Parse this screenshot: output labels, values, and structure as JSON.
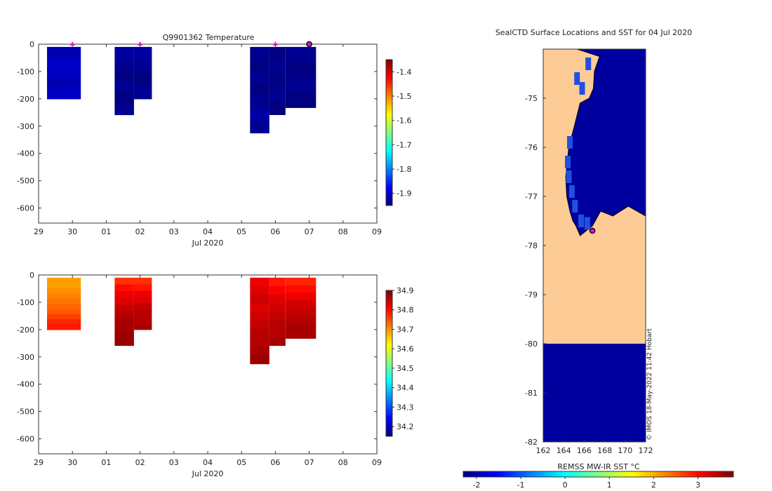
{
  "chart_data": [
    {
      "type": "heatmap",
      "title": "Q9901362  Temperature",
      "xlabel": "Jul 2020",
      "ylabel": "",
      "x_ticks": [
        "29",
        "30",
        "01",
        "02",
        "03",
        "04",
        "05",
        "06",
        "07",
        "08",
        "09"
      ],
      "xlim": [
        0,
        10
      ],
      "y_ticks": [
        0,
        -100,
        -200,
        -300,
        -400,
        -500,
        -600
      ],
      "ylim": [
        -655,
        0
      ],
      "profile_markers_day": [
        1,
        3,
        7,
        8
      ],
      "last_profile_day": 8,
      "colorbar": {
        "min": -1.95,
        "max": -1.35,
        "ticks": [
          -1.4,
          -1.5,
          -1.6,
          -1.7,
          -1.8,
          -1.9
        ]
      },
      "profiles": [
        {
          "start": 0.25,
          "end": 1.25,
          "depth": 200,
          "values": [
            -1.92,
            -1.91,
            -1.91,
            -1.92,
            -1.91
          ]
        },
        {
          "start": 2.25,
          "end": 2.82,
          "depth": 258,
          "values": [
            -1.93,
            -1.94,
            -1.95,
            -1.94,
            -1.95,
            -1.94
          ]
        },
        {
          "start": 2.82,
          "end": 3.35,
          "depth": 200,
          "values": [
            -1.93,
            -1.94,
            -1.95,
            -1.94
          ]
        },
        {
          "start": 6.25,
          "end": 6.82,
          "depth": 325,
          "values": [
            -1.94,
            -1.95,
            -1.94,
            -1.95,
            -1.94,
            -1.93,
            -1.94
          ]
        },
        {
          "start": 6.82,
          "end": 7.3,
          "depth": 258,
          "values": [
            -1.95,
            -1.94,
            -1.95,
            -1.94,
            -1.95
          ]
        },
        {
          "start": 7.3,
          "end": 8.2,
          "depth": 232,
          "values": [
            -1.94,
            -1.95,
            -1.94,
            -1.95
          ]
        }
      ]
    },
    {
      "type": "heatmap",
      "title": "",
      "xlabel": "Jul 2020",
      "ylabel": "",
      "x_ticks": [
        "29",
        "30",
        "01",
        "02",
        "03",
        "04",
        "05",
        "06",
        "07",
        "08",
        "09"
      ],
      "xlim": [
        0,
        10
      ],
      "y_ticks": [
        0,
        -100,
        -200,
        -300,
        -400,
        -500,
        -600
      ],
      "ylim": [
        -655,
        0
      ],
      "colorbar": {
        "min": 34.15,
        "max": 34.9,
        "ticks": [
          34.9,
          34.8,
          34.7,
          34.6,
          34.5,
          34.4,
          34.3,
          34.2
        ]
      },
      "profiles": [
        {
          "start": 0.25,
          "end": 1.25,
          "depth": 200,
          "values": [
            34.69,
            34.69,
            34.7,
            34.71,
            34.72,
            34.73,
            34.74,
            34.76,
            34.78,
            34.79
          ]
        },
        {
          "start": 2.25,
          "end": 2.82,
          "depth": 258,
          "values": [
            34.77,
            34.8,
            34.82,
            34.83,
            34.85,
            34.86,
            34.87,
            34.87,
            34.88,
            34.88
          ]
        },
        {
          "start": 2.82,
          "end": 3.35,
          "depth": 200,
          "values": [
            34.77,
            34.79,
            34.82,
            34.83,
            34.85,
            34.86,
            34.86,
            34.87
          ]
        },
        {
          "start": 6.25,
          "end": 6.82,
          "depth": 325,
          "values": [
            34.82,
            34.83,
            34.84,
            34.83,
            34.84,
            34.85,
            34.86,
            34.86,
            34.87,
            34.88
          ]
        },
        {
          "start": 6.82,
          "end": 7.3,
          "depth": 258,
          "values": [
            34.79,
            34.81,
            34.83,
            34.84,
            34.85,
            34.86,
            34.86,
            34.87
          ]
        },
        {
          "start": 7.3,
          "end": 8.2,
          "depth": 232,
          "values": [
            34.78,
            34.8,
            34.82,
            34.84,
            34.85,
            34.86,
            34.87,
            34.87
          ]
        }
      ]
    },
    {
      "type": "heatmap",
      "title": "SealCTD Surface Locations and SST for 04 Jul 2020",
      "xlabel": "REMSS MW-IR SST °C",
      "ylabel": "",
      "x_ticks": [
        162,
        164,
        166,
        168,
        170,
        172
      ],
      "xlim": [
        162,
        172
      ],
      "y_ticks": [
        -75,
        -76,
        -77,
        -78,
        -79,
        -80,
        -81,
        -82
      ],
      "ylim": [
        -82,
        -74.0
      ],
      "colorbar": {
        "min": -2.3,
        "max": 3.8,
        "ticks": [
          -2,
          -1,
          0,
          1,
          2,
          3
        ]
      },
      "land_color": "#fdcc96",
      "ocean_color": "#00009f",
      "coastal_color": "#2050e0",
      "marker_color": "#ff00ff",
      "ice_shelf_edge_lat": -80.0,
      "seal_location": {
        "lon": 166.8,
        "lat": -77.7
      },
      "credit": "© IMOS 18-May-2022 11:42 Hobart"
    }
  ]
}
